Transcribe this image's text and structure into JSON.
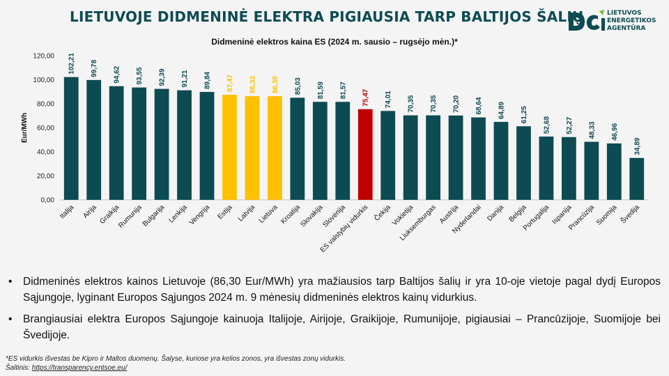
{
  "header": {
    "title": "LIETUVOJE DIDMENINĖ ELEKTRA PIGIAUSIA TARP BALTIJOS ŠALIŲ",
    "logo": {
      "lines": [
        "LIETUVOS",
        "ENERGETIKOS",
        "AGENTŪRA"
      ],
      "colors": {
        "teal": "#0d4b53",
        "green": "#78b83c"
      }
    }
  },
  "subtitle": "Didmeninė elektros kaina ES (2024 m. sausio – rugsėjo mėn.)*",
  "chart_data": {
    "type": "bar",
    "title": "Didmeninė elektros kaina ES (2024 m. sausio – rugsėjo mėn.)*",
    "xlabel": "",
    "ylabel": "Eur/MWh",
    "ylim": [
      0,
      120
    ],
    "yticks": [
      "0,00",
      "20,00",
      "40,00",
      "60,00",
      "80,00",
      "100,00",
      "120,00"
    ],
    "grid": false,
    "categories": [
      "Italija",
      "Airija",
      "Graikija",
      "Rumunija",
      "Bulgarija",
      "Lenkija",
      "Vengrija",
      "Estija",
      "Latvija",
      "Lietuva",
      "Kroatija",
      "Slovakija",
      "Slovėnija",
      "ES valstybių vidurkis",
      "Čekija",
      "Vokietija",
      "Liuksemburgas",
      "Austrija",
      "Nyderlandai",
      "Danija",
      "Belgija",
      "Portugalija",
      "Ispanija",
      "Prancūzija",
      "Suomija",
      "Švedija"
    ],
    "values": [
      102.21,
      99.78,
      94.62,
      93.55,
      92.39,
      91.21,
      89.84,
      87.47,
      86.32,
      86.3,
      85.03,
      81.59,
      81.57,
      75.47,
      74.01,
      70.35,
      70.35,
      70.2,
      68.64,
      64.89,
      61.25,
      52.68,
      52.27,
      48.33,
      46.96,
      34.89
    ],
    "labels": [
      "102,21",
      "99,78",
      "94,62",
      "93,55",
      "92,39",
      "91,21",
      "89,84",
      "87,47",
      "86,32",
      "86,30",
      "85,03",
      "81,59",
      "81,57",
      "75,47",
      "74,01",
      "70,35",
      "70,35",
      "70,20",
      "68,64",
      "64,89",
      "61,25",
      "52,68",
      "52,27",
      "48,33",
      "46,96",
      "34,89"
    ],
    "bar_colors": [
      "#0d4b53",
      "#0d4b53",
      "#0d4b53",
      "#0d4b53",
      "#0d4b53",
      "#0d4b53",
      "#0d4b53",
      "#ffc000",
      "#ffc000",
      "#ffc000",
      "#0d4b53",
      "#0d4b53",
      "#0d4b53",
      "#c00000",
      "#0d4b53",
      "#0d4b53",
      "#0d4b53",
      "#0d4b53",
      "#0d4b53",
      "#0d4b53",
      "#0d4b53",
      "#0d4b53",
      "#0d4b53",
      "#0d4b53",
      "#0d4b53",
      "#0d4b53"
    ],
    "label_colors": [
      "#0d4b53",
      "#0d4b53",
      "#0d4b53",
      "#0d4b53",
      "#0d4b53",
      "#0d4b53",
      "#0d4b53",
      "#ffc000",
      "#ffc000",
      "#ffc000",
      "#0d4b53",
      "#0d4b53",
      "#0d4b53",
      "#c00000",
      "#0d4b53",
      "#0d4b53",
      "#0d4b53",
      "#0d4b53",
      "#0d4b53",
      "#0d4b53",
      "#0d4b53",
      "#0d4b53",
      "#0d4b53",
      "#0d4b53",
      "#0d4b53",
      "#0d4b53"
    ]
  },
  "bullets": [
    "Didmeninės elektros kainos Lietuvoje (86,30 Eur/MWh) yra mažiausios tarp Baltijos šalių ir yra 10-oje vietoje pagal dydį Europos Sąjungoje, lyginant Europos Sąjungos 2024 m. 9 mėnesių didmeninės elektros kainų vidurkius.",
    "Brangiausiai elektra Europos Sąjungoje kainuoja Italijoje, Airijoje, Graikijoje, Rumunijoje, pigiausiai – Prancūzijoje, Suomijoje bei Švedijoje."
  ],
  "bullet_symbol": "•",
  "footnote": {
    "note": "*ES vidurkis išvestas be Kipro ir Maltos duomenų. Šalyse, kuriose yra kelios zonos, yra išvestas zonų vidurkis.",
    "source_label": "Šaltinis: ",
    "source_link": "https://transparency.entsoe.eu/"
  }
}
